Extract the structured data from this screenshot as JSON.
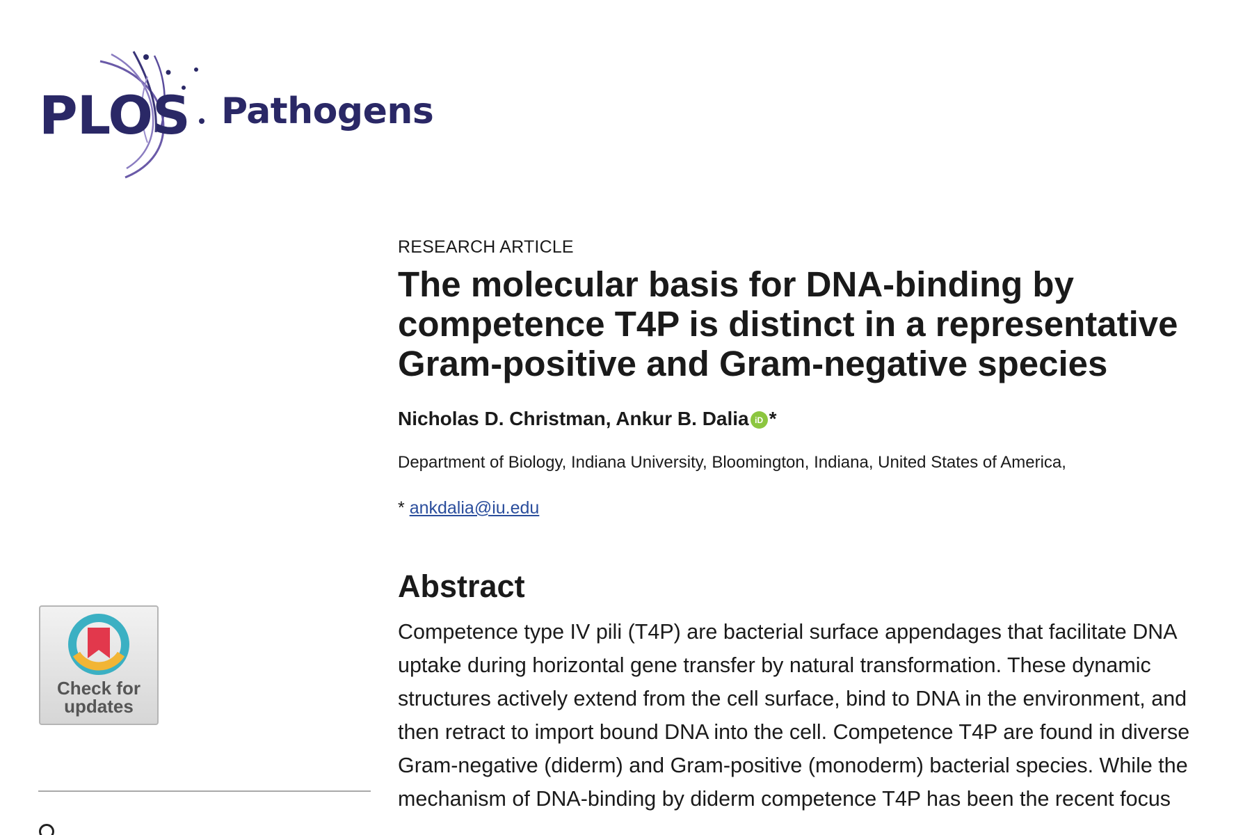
{
  "journal": {
    "brand": "PLOS",
    "name": "Pathogens",
    "brand_color": "#2a2866",
    "accent_color": "#7a6ab0"
  },
  "article": {
    "type": "RESEARCH ARTICLE",
    "title": "The molecular basis for DNA-binding by competence T4P is distinct in a representative Gram-positive and Gram-negative species",
    "authors": "Nicholas D. Christman, Ankur B. Dalia",
    "orcid_badge": "iD",
    "corresponding_marker": "*",
    "affiliation": "Department of Biology, Indiana University, Bloomington, Indiana, United States of America,",
    "correspondence": {
      "marker": "*",
      "email": "ankdalia@iu.edu"
    }
  },
  "abstract": {
    "heading": "Abstract",
    "text": "Competence type IV pili (T4P) are bacterial surface appendages that facilitate DNA uptake during horizontal gene transfer by natural transformation. These dynamic structures actively extend from the cell surface, bind to DNA in the environment, and then retract to import bound DNA into the cell. Competence T4P are found in diverse Gram-negative (diderm) and Gram-positive (monoderm) bacterial species. While the mechanism of DNA-binding by diderm competence T4P has been the recent focus"
  },
  "sidebar": {
    "check_for_updates": {
      "line1": "Check for",
      "line2": "updates",
      "icon": "bookmark-check-icon"
    }
  },
  "colors": {
    "link": "#2a4d9c",
    "orcid": "#8cc63f"
  }
}
